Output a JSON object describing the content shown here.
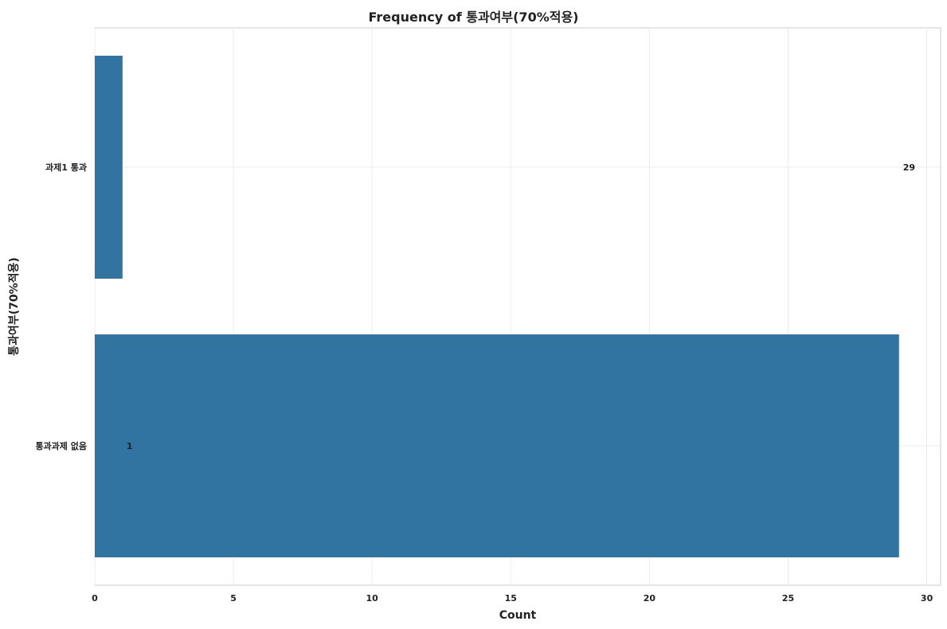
{
  "chart_data": {
    "type": "bar",
    "orientation": "horizontal",
    "title": "Frequency of 통과여부(70%적용)",
    "xlabel": "Count",
    "ylabel": "통과여부(70%적용)",
    "categories": [
      "과제1 통과",
      "통과과제 없음"
    ],
    "values": [
      1,
      29
    ],
    "bar_labels": [
      "29",
      "1"
    ],
    "xlim": [
      0,
      30.5
    ],
    "xticks": [
      0,
      5,
      10,
      15,
      20,
      25,
      30
    ],
    "grid": true,
    "bar_color": "#3274a1"
  }
}
